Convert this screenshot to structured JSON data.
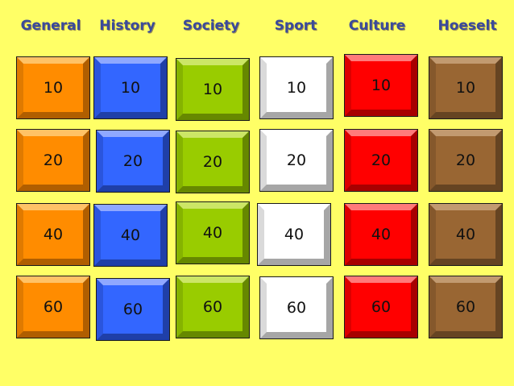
{
  "categories": [
    {
      "name": "General",
      "face": "#FF8C00",
      "light": "#FFC266",
      "dark": "#B05E00",
      "side": "#E07A00"
    },
    {
      "name": "History",
      "face": "#3366FF",
      "light": "#8FA8FF",
      "dark": "#1F3FA8",
      "side": "#2A55DD"
    },
    {
      "name": "Society",
      "face": "#99CC00",
      "light": "#CCE666",
      "dark": "#668800",
      "side": "#85B300"
    },
    {
      "name": "Sport",
      "face": "#FFFFFF",
      "light": "#FFFFFF",
      "dark": "#A6A6A6",
      "side": "#DADADA"
    },
    {
      "name": "Culture",
      "face": "#FF0000",
      "light": "#FF7A7A",
      "dark": "#A80000",
      "side": "#DD0000"
    },
    {
      "name": "Hoeselt",
      "face": "#996633",
      "light": "#C29A70",
      "dark": "#664422",
      "side": "#85582C"
    }
  ],
  "points": [
    "10",
    "20",
    "40",
    "60"
  ]
}
